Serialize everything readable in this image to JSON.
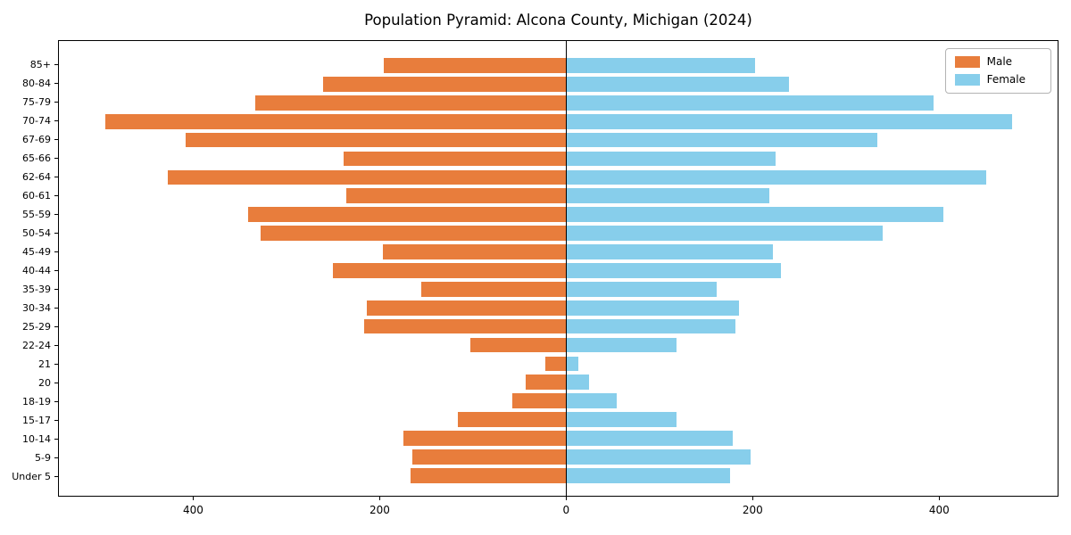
{
  "title": "Population Pyramid: Alcona County, Michigan (2024)",
  "legend": {
    "male_label": "Male",
    "female_label": "Female"
  },
  "colors": {
    "male": "#E87D3C",
    "female": "#87CEEB",
    "axis": "#000000",
    "legend_border": "#b3b3b3"
  },
  "chart_data": {
    "type": "bar",
    "orientation": "horizontal-pyramid",
    "title": "Population Pyramid: Alcona County, Michigan (2024)",
    "categories": [
      "85+",
      "80-84",
      "75-79",
      "70-74",
      "67-69",
      "65-66",
      "62-64",
      "60-61",
      "55-59",
      "50-54",
      "45-49",
      "40-44",
      "35-39",
      "30-34",
      "25-29",
      "22-24",
      "21",
      "20",
      "18-19",
      "15-17",
      "10-14",
      "5-9",
      "Under 5"
    ],
    "series": [
      {
        "name": "Male",
        "side": "left",
        "color": "#E87D3C",
        "values": [
          196,
          261,
          334,
          495,
          409,
          239,
          428,
          236,
          342,
          328,
          197,
          251,
          156,
          214,
          217,
          103,
          22,
          44,
          58,
          116,
          175,
          165,
          167
        ]
      },
      {
        "name": "Female",
        "side": "right",
        "color": "#87CEEB",
        "values": [
          203,
          239,
          395,
          479,
          334,
          225,
          451,
          218,
          405,
          340,
          222,
          231,
          162,
          186,
          182,
          119,
          13,
          25,
          54,
          119,
          179,
          198,
          176
        ]
      }
    ],
    "x_tick_labels": [
      "400",
      "200",
      "0",
      "200",
      "400"
    ],
    "x_tick_values": [
      -400,
      -200,
      0,
      200,
      400
    ],
    "xlim": [
      -545,
      528
    ],
    "grid": false,
    "legend_position": "upper right"
  }
}
